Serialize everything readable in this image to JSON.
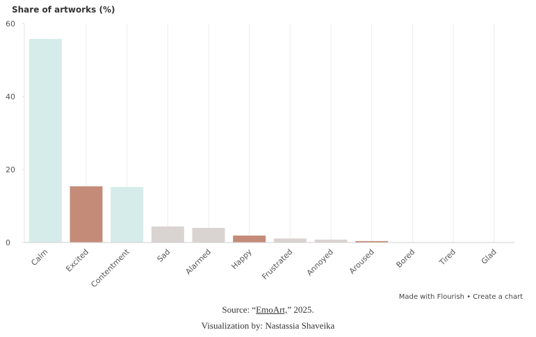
{
  "chart_data": {
    "type": "bar",
    "title": "Share of artworks (%)",
    "categories": [
      "Calm",
      "Excited",
      "Contentment",
      "Sad",
      "Alarmed",
      "Happy",
      "Frustrated",
      "Annoyed",
      "Aroused",
      "Bored",
      "Tired",
      "Glad"
    ],
    "values": [
      55.8,
      15.4,
      15.2,
      4.4,
      4.0,
      1.9,
      1.1,
      0.8,
      0.4,
      0.1,
      0.05,
      0.03
    ],
    "colors": [
      "#d6ecea",
      "#c48b78",
      "#d6ecea",
      "#d9d3d1",
      "#d9d3d1",
      "#c48b78",
      "#d9d3d1",
      "#d9d3d1",
      "#c48b78",
      "#c9d1ea",
      "#d9d3d1",
      "#d9d3d1"
    ],
    "ylim": [
      0,
      60
    ],
    "yticks": [
      0,
      20,
      40,
      60
    ],
    "x_grid": true
  },
  "footer": {
    "credit": "Made with Flourish",
    "separator": "•",
    "cta": "Create a chart",
    "source_prefix": "Source: “",
    "source_link": "EmoArt,",
    "source_suffix": "” 2025.",
    "byline": "Visualization by: Nastassia Shaveika"
  }
}
